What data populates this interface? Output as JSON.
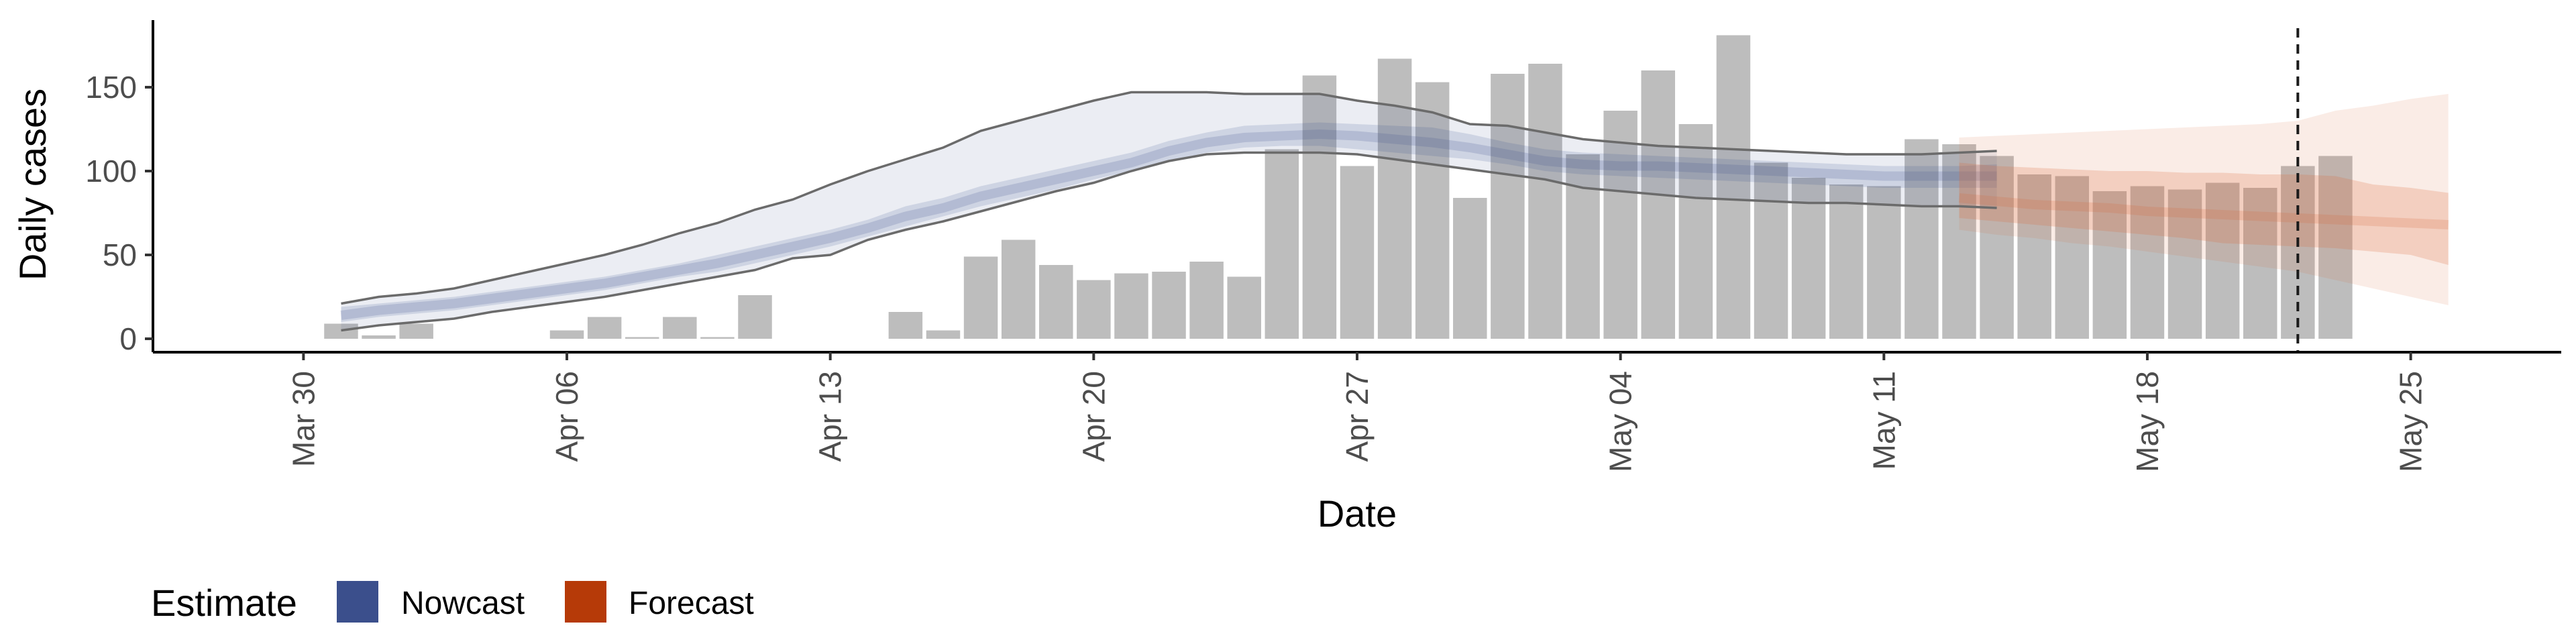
{
  "chart_data": {
    "type": "bar",
    "xlabel": "Date",
    "ylabel": "Daily cases",
    "x_range": [
      "2020-03-26",
      "2020-05-29"
    ],
    "ylim": [
      -8,
      190
    ],
    "x_ticks": [
      {
        "date": "2020-03-30",
        "label": "Mar 30"
      },
      {
        "date": "2020-04-06",
        "label": "Apr 06"
      },
      {
        "date": "2020-04-13",
        "label": "Apr 13"
      },
      {
        "date": "2020-04-20",
        "label": "Apr 20"
      },
      {
        "date": "2020-04-27",
        "label": "Apr 27"
      },
      {
        "date": "2020-05-04",
        "label": "May 04"
      },
      {
        "date": "2020-05-11",
        "label": "May 11"
      },
      {
        "date": "2020-05-18",
        "label": "May 18"
      },
      {
        "date": "2020-05-25",
        "label": "May 25"
      }
    ],
    "y_ticks": [
      {
        "value": 0,
        "label": "0"
      },
      {
        "value": 50,
        "label": "50"
      },
      {
        "value": 100,
        "label": "100"
      },
      {
        "value": 150,
        "label": "150"
      }
    ],
    "grid": false,
    "vline_date": "2020-05-22",
    "bars": {
      "start_date": "2020-03-31",
      "values": [
        9,
        2,
        9,
        0,
        0,
        0,
        5,
        13,
        1,
        13,
        1,
        26,
        0,
        0,
        0,
        16,
        5,
        49,
        59,
        44,
        35,
        39,
        40,
        46,
        37,
        113,
        157,
        103,
        167,
        153,
        84,
        158,
        164,
        110,
        136,
        160,
        128,
        181,
        105,
        96,
        92,
        91,
        119,
        116,
        109,
        98,
        97,
        88,
        91,
        89,
        93,
        90,
        103,
        109
      ]
    },
    "series": [
      {
        "name": "Nowcast",
        "start_date": "2020-03-31",
        "median": [
          14,
          17,
          19,
          21,
          24,
          27,
          30,
          33,
          37,
          41,
          45,
          50,
          55,
          60,
          66,
          73,
          78,
          85,
          90,
          95,
          100,
          105,
          112,
          117,
          120,
          121,
          122,
          121,
          119,
          117,
          114,
          110,
          106,
          104,
          103,
          103,
          102,
          101,
          100,
          99,
          98,
          97,
          97,
          97,
          97
        ],
        "lower50": [
          10,
          13,
          15,
          17,
          20,
          23,
          26,
          29,
          33,
          37,
          40,
          45,
          50,
          55,
          61,
          67,
          73,
          79,
          84,
          89,
          95,
          100,
          106,
          111,
          114,
          115,
          115,
          113,
          111,
          109,
          107,
          104,
          100,
          98,
          97,
          96,
          95,
          94,
          93,
          92,
          91,
          90,
          90,
          90,
          90
        ],
        "upper50": [
          19,
          21,
          23,
          25,
          28,
          31,
          34,
          37,
          41,
          45,
          50,
          55,
          60,
          65,
          71,
          79,
          84,
          91,
          96,
          101,
          106,
          111,
          118,
          123,
          127,
          128,
          129,
          128,
          127,
          126,
          122,
          117,
          113,
          111,
          110,
          109,
          108,
          107,
          106,
          105,
          104,
          103,
          103,
          103,
          104
        ],
        "lower90": [
          5,
          8,
          10,
          12,
          16,
          19,
          22,
          25,
          29,
          33,
          37,
          41,
          48,
          50,
          59,
          65,
          70,
          76,
          82,
          88,
          93,
          100,
          106,
          110,
          111,
          111,
          111,
          110,
          107,
          104,
          101,
          98,
          95,
          90,
          88,
          86,
          84,
          83,
          82,
          81,
          81,
          80,
          79,
          79,
          78
        ],
        "upper90": [
          21,
          25,
          27,
          30,
          35,
          40,
          45,
          50,
          56,
          63,
          69,
          77,
          83,
          92,
          100,
          107,
          114,
          124,
          130,
          136,
          142,
          147,
          147,
          147,
          146,
          146,
          146,
          142,
          139,
          135,
          128,
          127,
          123,
          119,
          117,
          115,
          114,
          113,
          112,
          111,
          110,
          110,
          110,
          111,
          112
        ]
      },
      {
        "name": "Forecast",
        "start_date": "2020-05-13",
        "median": [
          84,
          82,
          80,
          79,
          78,
          76,
          75,
          74,
          73,
          72,
          71,
          70,
          69,
          68
        ],
        "lower50": [
          72,
          70,
          68,
          66,
          64,
          62,
          60,
          57,
          56,
          55,
          54,
          52,
          50,
          44
        ],
        "upper50": [
          105,
          103,
          102,
          101,
          100,
          100,
          99,
          99,
          98,
          98,
          97,
          92,
          90,
          87
        ],
        "lower90": [
          65,
          62,
          60,
          57,
          55,
          52,
          49,
          46,
          43,
          40,
          35,
          30,
          25,
          20
        ],
        "upper90": [
          120,
          121,
          122,
          123,
          124,
          125,
          126,
          127,
          128,
          130,
          136,
          139,
          143,
          146
        ]
      }
    ],
    "legend": {
      "title": "Estimate",
      "position": "bottom-left",
      "items": [
        {
          "label": "Nowcast",
          "color": "#3b4f8c"
        },
        {
          "label": "Forecast",
          "color": "#b63a08"
        }
      ]
    },
    "colors": {
      "bar": "#bdbdbd",
      "nowcast_band": "#3b4f8c",
      "forecast_band": "#d96a3a",
      "line": "#6b6b6b",
      "axis": "#000000"
    }
  }
}
